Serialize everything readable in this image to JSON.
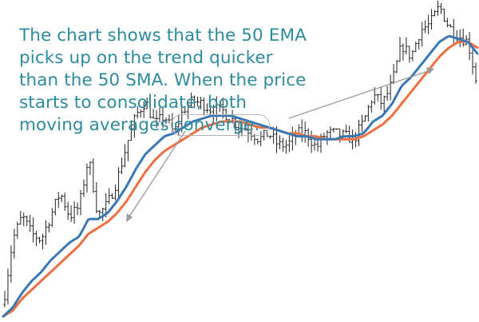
{
  "annotation": {
    "line1": "The chart shows that the 50 EMA",
    "line2": "picks up on the trend quicker",
    "line3": "than the 50 SMA. When the price",
    "line4": "starts to consolidate, both",
    "line5_prefix": "moving averages",
    "line5_highlight": "converge."
  },
  "colors": {
    "text": "#2e8b9e",
    "candles": "#222222",
    "ema": "#3a78b5",
    "sma": "#ee6f3f",
    "arrow": "#9a9a9a",
    "highlight_border": "#b5b5b5"
  },
  "chart_data": {
    "type": "line",
    "description_of_marks": "price bars (OHLC) with two moving average lines",
    "axes_visible": false,
    "grid": false,
    "x": [
      0,
      4,
      8,
      12,
      16,
      20,
      24,
      28,
      32,
      36,
      40,
      44,
      48,
      52,
      56,
      60,
      64,
      68,
      72,
      76,
      80,
      84,
      88,
      92,
      96,
      100,
      104,
      108,
      112,
      116,
      120,
      124,
      128,
      132,
      136,
      140,
      144,
      148,
      152,
      156,
      160,
      164,
      168,
      172,
      176,
      180,
      184,
      188,
      192,
      196,
      200
    ],
    "ylim": [
      0,
      100
    ],
    "series": [
      {
        "values": [
          4,
          26,
          34,
          28,
          26,
          34,
          42,
          34,
          37,
          54,
          34,
          38,
          46,
          58,
          68,
          73,
          65,
          68,
          62,
          70,
          73,
          72,
          70,
          70,
          67,
          64,
          63,
          60,
          62,
          58,
          58,
          62,
          62,
          57,
          62,
          62,
          61,
          60,
          66,
          75,
          72,
          79,
          92,
          88,
          97,
          99,
          105,
          98,
          95,
          93,
          78
        ]
      },
      {
        "values": [
          0,
          3,
          8,
          12,
          15,
          19,
          22,
          25,
          27,
          33,
          33,
          35,
          39,
          44,
          50,
          55,
          58,
          61,
          62,
          64,
          66,
          67,
          68,
          68,
          68,
          67,
          66,
          65,
          64,
          63,
          62,
          61,
          61,
          60,
          60,
          60,
          61,
          61,
          62,
          66,
          68,
          72,
          78,
          81,
          85,
          89,
          93,
          95,
          94,
          93,
          89
        ]
      },
      {
        "values": [
          0,
          2,
          6,
          9,
          12,
          15,
          18,
          21,
          24,
          28,
          30,
          32,
          35,
          39,
          44,
          49,
          53,
          56,
          58,
          60,
          62,
          64,
          65,
          66,
          66,
          66,
          65,
          64,
          64,
          63,
          62,
          62,
          61,
          61,
          60,
          60,
          60,
          60,
          61,
          63,
          65,
          68,
          72,
          76,
          80,
          84,
          88,
          91,
          93,
          93,
          91
        ]
      }
    ]
  }
}
